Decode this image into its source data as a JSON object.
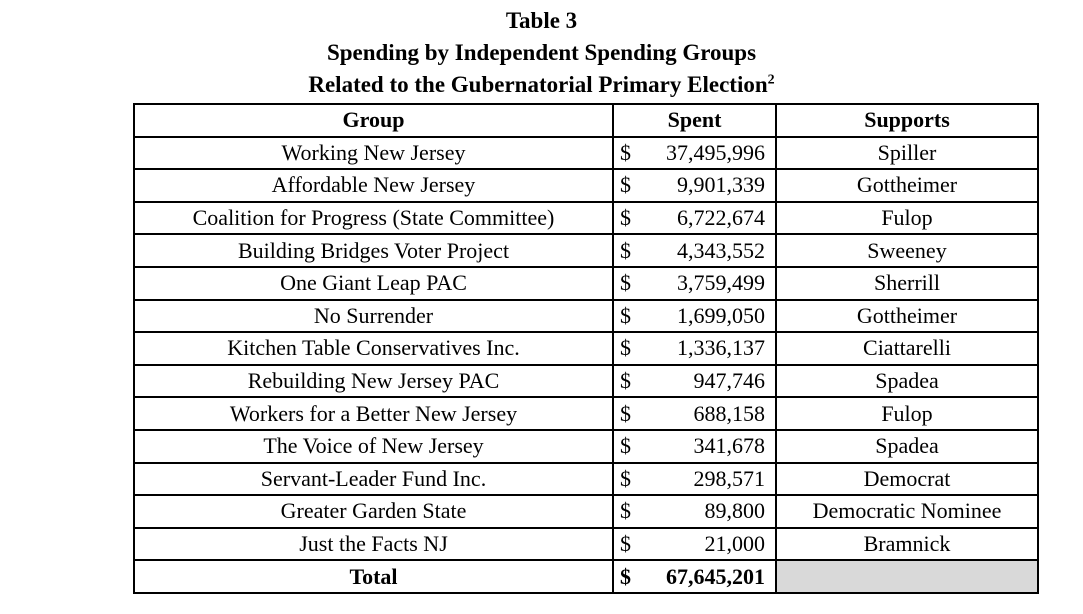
{
  "title": {
    "line1": "Table 3",
    "line2": "Spending by Independent Spending Groups",
    "line3_text": "Related to the Gubernatorial Primary Election",
    "line3_superscript": "2"
  },
  "table": {
    "headers": {
      "group": "Group",
      "spent": "Spent",
      "supports": "Supports"
    },
    "rows": [
      {
        "group": "Working New Jersey",
        "spent_symbol": "$",
        "spent_amount": "37,495,996",
        "supports": "Spiller"
      },
      {
        "group": "Affordable New Jersey",
        "spent_symbol": "$",
        "spent_amount": "9,901,339",
        "supports": "Gottheimer"
      },
      {
        "group": "Coalition for Progress (State Committee)",
        "spent_symbol": "$",
        "spent_amount": "6,722,674",
        "supports": "Fulop"
      },
      {
        "group": "Building Bridges Voter Project",
        "spent_symbol": "$",
        "spent_amount": "4,343,552",
        "supports": "Sweeney"
      },
      {
        "group": "One Giant Leap PAC",
        "spent_symbol": "$",
        "spent_amount": "3,759,499",
        "supports": "Sherrill"
      },
      {
        "group": "No Surrender",
        "spent_symbol": "$",
        "spent_amount": "1,699,050",
        "supports": "Gottheimer"
      },
      {
        "group": "Kitchen Table Conservatives Inc.",
        "spent_symbol": "$",
        "spent_amount": "1,336,137",
        "supports": "Ciattarelli"
      },
      {
        "group": "Rebuilding New Jersey PAC",
        "spent_symbol": "$",
        "spent_amount": "947,746",
        "supports": "Spadea"
      },
      {
        "group": "Workers for a Better New Jersey",
        "spent_symbol": "$",
        "spent_amount": "688,158",
        "supports": "Fulop"
      },
      {
        "group": "The Voice of New Jersey",
        "spent_symbol": "$",
        "spent_amount": "341,678",
        "supports": "Spadea"
      },
      {
        "group": "Servant-Leader Fund Inc.",
        "spent_symbol": "$",
        "spent_amount": "298,571",
        "supports": "Democrat"
      },
      {
        "group": "Greater Garden State",
        "spent_symbol": "$",
        "spent_amount": "89,800",
        "supports": "Democratic Nominee"
      },
      {
        "group": "Just the Facts NJ",
        "spent_symbol": "$",
        "spent_amount": "21,000",
        "supports": "Bramnick"
      }
    ],
    "total_row": {
      "label": "Total",
      "spent_symbol": "$",
      "spent_amount": "67,645,201",
      "supports": ""
    },
    "colors": {
      "text": "#000000",
      "border": "#000000",
      "background": "#ffffff",
      "total_supports_shading": "#d9d9d9"
    }
  }
}
